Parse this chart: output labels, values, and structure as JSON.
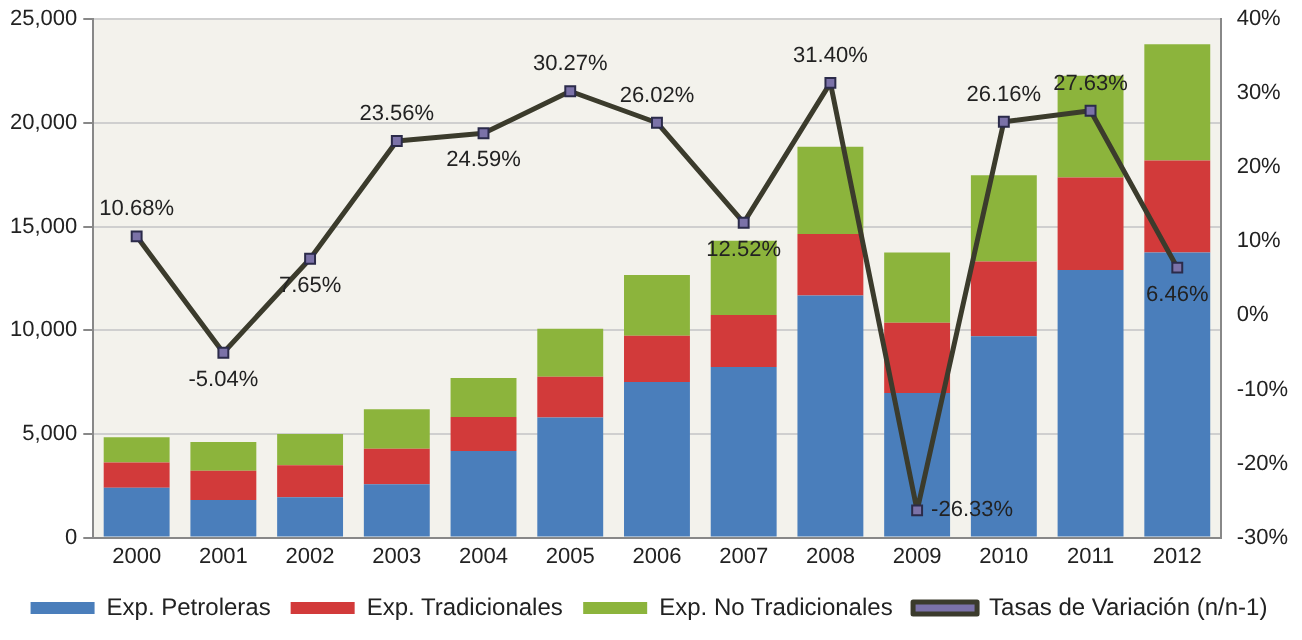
{
  "chart_data": {
    "type": "bar",
    "stacked": true,
    "categories": [
      "2000",
      "2001",
      "2002",
      "2003",
      "2004",
      "2005",
      "2006",
      "2007",
      "2008",
      "2009",
      "2010",
      "2011",
      "2012"
    ],
    "series": [
      {
        "name": "Exp. Petroleras",
        "color": "#4a7ebb",
        "values": [
          2400,
          1810,
          1940,
          2570,
          4180,
          5790,
          7500,
          8230,
          11680,
          6970,
          9710,
          12900,
          13750
        ]
      },
      {
        "name": "Exp. Tradicionales",
        "color": "#d23a3a",
        "values": [
          1220,
          1410,
          1550,
          1710,
          1640,
          1970,
          2240,
          2500,
          2960,
          3390,
          3610,
          4470,
          4440
        ]
      },
      {
        "name": "Exp. No Tradicionales",
        "color": "#8cb43c",
        "values": [
          1220,
          1390,
          1510,
          1910,
          1880,
          2310,
          2930,
          3580,
          4210,
          3390,
          4150,
          4900,
          5600
        ]
      },
      {
        "name": "Tasas de Variación (n/n-1)",
        "type": "line",
        "axis": "y2",
        "color": "#3b3b2c",
        "marker": "square",
        "values": [
          10.68,
          -5.04,
          7.65,
          23.56,
          24.59,
          30.27,
          26.02,
          12.52,
          31.4,
          -26.33,
          26.16,
          27.63,
          6.46
        ],
        "value_labels": [
          "10.68%",
          "-5.04%",
          "7.65%",
          "23.56%",
          "24.59%",
          "30.27%",
          "26.02%",
          "12.52%",
          "31.40%",
          "-26.33%",
          "26.16%",
          "27.63%",
          "6.46%"
        ]
      }
    ],
    "ylim": [
      0,
      25000
    ],
    "yticks": [
      0,
      {
        "value": 5000,
        "label": "5,000"
      },
      {
        "value": 10000,
        "label": "10,000"
      },
      {
        "value": 15000,
        "label": "15,000"
      },
      {
        "value": 20000,
        "label": "20,000"
      },
      {
        "value": 25000,
        "label": "25,000"
      }
    ],
    "y2lim": [
      -30,
      40
    ],
    "y2ticks": [
      {
        "value": -30,
        "label": "-30%"
      },
      {
        "value": -20,
        "label": "-20%"
      },
      {
        "value": -10,
        "label": "-10%"
      },
      {
        "value": 0,
        "label": "0%"
      },
      {
        "value": 10,
        "label": "10%"
      },
      {
        "value": 20,
        "label": "20%"
      },
      {
        "value": 30,
        "label": "30%"
      },
      {
        "value": 40,
        "label": "40%"
      }
    ],
    "grid": "y",
    "legend": "bottom"
  }
}
